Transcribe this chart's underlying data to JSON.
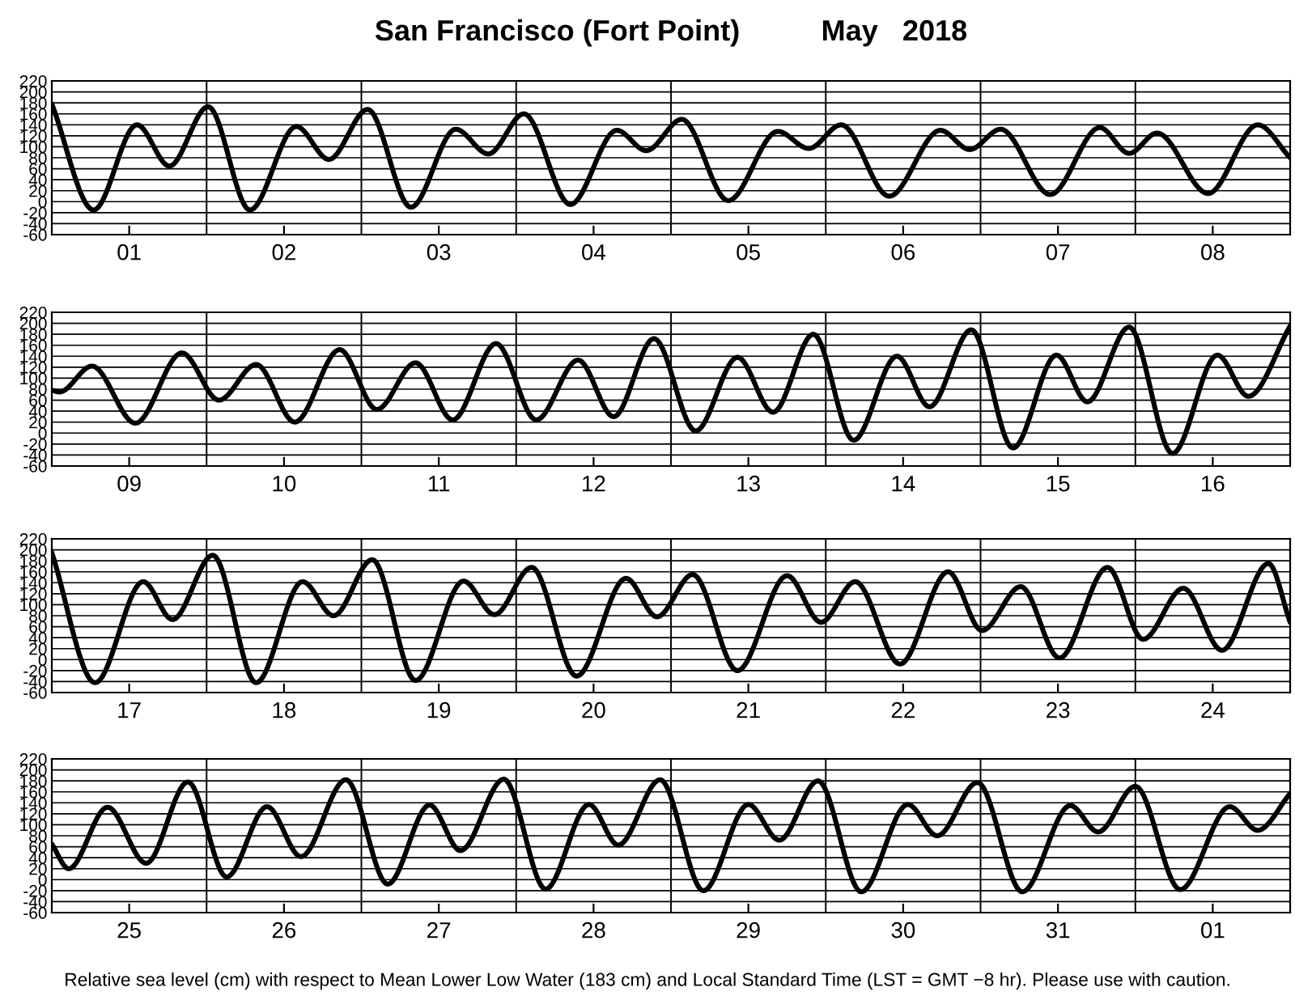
{
  "chart_data": [
    {
      "type": "line",
      "title": "San Francisco (Fort Point)          May   2018",
      "xlim": [
        "2018-05-01T00:00",
        "2018-05-09T00:00"
      ],
      "ylim": [
        -60,
        220
      ],
      "yticks": [
        -60,
        -40,
        -20,
        0,
        20,
        40,
        60,
        80,
        100,
        120,
        140,
        160,
        180,
        200,
        220
      ],
      "xticks": [
        {
          "value": "2018-05-01T12:00",
          "label": "01"
        },
        {
          "value": "2018-05-02T12:00",
          "label": "02"
        },
        {
          "value": "2018-05-03T12:00",
          "label": "03"
        },
        {
          "value": "2018-05-04T12:00",
          "label": "04"
        },
        {
          "value": "2018-05-05T12:00",
          "label": "05"
        },
        {
          "value": "2018-05-06T12:00",
          "label": "06"
        },
        {
          "value": "2018-05-07T12:00",
          "label": "07"
        },
        {
          "value": "2018-05-08T12:00",
          "label": "08"
        }
      ],
      "grid": "y",
      "ref_lines": [
        {
          "axis": "x",
          "value": "2018-05-02T00:00"
        },
        {
          "axis": "x",
          "value": "2018-05-03T00:00"
        },
        {
          "axis": "x",
          "value": "2018-05-04T00:00"
        },
        {
          "axis": "x",
          "value": "2018-05-05T00:00"
        },
        {
          "axis": "x",
          "value": "2018-05-06T00:00"
        },
        {
          "axis": "x",
          "value": "2018-05-07T00:00"
        },
        {
          "axis": "x",
          "value": "2018-05-08T00:00"
        }
      ],
      "series": [
        {
          "color": "#000000",
          "x": [
            "2018-05-01T00:00",
            "2018-05-01T06:29",
            "2018-05-01T13:12",
            "2018-05-01T18:14",
            "2018-05-02T00:14",
            "2018-05-02T06:43",
            "2018-05-02T13:55",
            "2018-05-02T18:58",
            "2018-05-03T00:58",
            "2018-05-03T07:41",
            "2018-05-03T14:38",
            "2018-05-03T19:41",
            "2018-05-04T01:12",
            "2018-05-04T08:24",
            "2018-05-04T15:36",
            "2018-05-04T20:10",
            "2018-05-05T01:41",
            "2018-05-05T08:53",
            "2018-05-05T16:34",
            "2018-05-05T21:22",
            "2018-05-06T02:24",
            "2018-05-06T09:50",
            "2018-05-06T17:46",
            "2018-05-06T22:19",
            "2018-05-07T03:07",
            "2018-05-07T10:48",
            "2018-05-07T18:29",
            "2018-05-07T23:02",
            "2018-05-08T03:22",
            "2018-05-08T11:17",
            "2018-05-08T18:58",
            "2018-05-09T00:00"
          ],
          "values": [
            178,
            -15,
            140,
            65,
            173,
            -15,
            137,
            77,
            168,
            -10,
            132,
            87,
            160,
            -5,
            130,
            93,
            150,
            2,
            128,
            97,
            140,
            10,
            130,
            95,
            132,
            13,
            135,
            88,
            125,
            15,
            140,
            80
          ]
        }
      ]
    },
    {
      "type": "line",
      "xlim": [
        "2018-05-09T00:00",
        "2018-05-17T00:00"
      ],
      "ylim": [
        -60,
        220
      ],
      "yticks": [
        -60,
        -40,
        -20,
        0,
        20,
        40,
        60,
        80,
        100,
        120,
        140,
        160,
        180,
        200,
        220
      ],
      "xticks": [
        {
          "value": "2018-05-09T12:00",
          "label": "09"
        },
        {
          "value": "2018-05-10T12:00",
          "label": "10"
        },
        {
          "value": "2018-05-11T12:00",
          "label": "11"
        },
        {
          "value": "2018-05-12T12:00",
          "label": "12"
        },
        {
          "value": "2018-05-13T12:00",
          "label": "13"
        },
        {
          "value": "2018-05-14T12:00",
          "label": "14"
        },
        {
          "value": "2018-05-15T12:00",
          "label": "15"
        },
        {
          "value": "2018-05-16T12:00",
          "label": "16"
        }
      ],
      "grid": "y",
      "ref_lines": [
        {
          "axis": "x",
          "value": "2018-05-10T00:00"
        },
        {
          "axis": "x",
          "value": "2018-05-11T00:00"
        },
        {
          "axis": "x",
          "value": "2018-05-12T00:00"
        },
        {
          "axis": "x",
          "value": "2018-05-13T00:00"
        },
        {
          "axis": "x",
          "value": "2018-05-14T00:00"
        },
        {
          "axis": "x",
          "value": "2018-05-15T00:00"
        },
        {
          "axis": "x",
          "value": "2018-05-16T00:00"
        }
      ],
      "series": [
        {
          "color": "#000000",
          "x": [
            "2018-05-09T00:00",
            "2018-05-09T01:12",
            "2018-05-09T06:14",
            "2018-05-09T12:58",
            "2018-05-09T20:10",
            "2018-05-10T01:55",
            "2018-05-10T07:41",
            "2018-05-10T13:41",
            "2018-05-10T20:38",
            "2018-05-11T02:24",
            "2018-05-11T08:24",
            "2018-05-11T14:10",
            "2018-05-11T20:53",
            "2018-05-12T03:07",
            "2018-05-12T09:36",
            "2018-05-12T15:07",
            "2018-05-12T21:22",
            "2018-05-13T03:50",
            "2018-05-13T10:19",
            "2018-05-13T15:50",
            "2018-05-13T22:05",
            "2018-05-14T04:19",
            "2018-05-14T11:02",
            "2018-05-14T16:05",
            "2018-05-14T22:34",
            "2018-05-15T05:02",
            "2018-05-15T11:46",
            "2018-05-15T16:34",
            "2018-05-15T23:02",
            "2018-05-16T05:46",
            "2018-05-16T12:43",
            "2018-05-16T17:31",
            "2018-05-17T00:00"
          ],
          "values": [
            78,
            75,
            122,
            18,
            146,
            60,
            125,
            20,
            152,
            43,
            128,
            24,
            163,
            24,
            133,
            30,
            172,
            4,
            138,
            38,
            180,
            -13,
            140,
            48,
            188,
            -27,
            142,
            57,
            193,
            -37,
            142,
            67,
            195
          ]
        }
      ]
    },
    {
      "type": "line",
      "xlim": [
        "2018-05-17T00:00",
        "2018-05-25T00:00"
      ],
      "ylim": [
        -60,
        220
      ],
      "yticks": [
        -60,
        -40,
        -20,
        0,
        20,
        40,
        60,
        80,
        100,
        120,
        140,
        160,
        180,
        200,
        220
      ],
      "xticks": [
        {
          "value": "2018-05-17T12:00",
          "label": "17"
        },
        {
          "value": "2018-05-18T12:00",
          "label": "18"
        },
        {
          "value": "2018-05-19T12:00",
          "label": "19"
        },
        {
          "value": "2018-05-20T12:00",
          "label": "20"
        },
        {
          "value": "2018-05-21T12:00",
          "label": "21"
        },
        {
          "value": "2018-05-22T12:00",
          "label": "22"
        },
        {
          "value": "2018-05-23T12:00",
          "label": "23"
        },
        {
          "value": "2018-05-24T12:00",
          "label": "24"
        }
      ],
      "grid": "y",
      "ref_lines": [
        {
          "axis": "x",
          "value": "2018-05-18T00:00"
        },
        {
          "axis": "x",
          "value": "2018-05-19T00:00"
        },
        {
          "axis": "x",
          "value": "2018-05-20T00:00"
        },
        {
          "axis": "x",
          "value": "2018-05-21T00:00"
        },
        {
          "axis": "x",
          "value": "2018-05-22T00:00"
        },
        {
          "axis": "x",
          "value": "2018-05-23T00:00"
        },
        {
          "axis": "x",
          "value": "2018-05-24T00:00"
        }
      ],
      "series": [
        {
          "color": "#000000",
          "x": [
            "2018-05-17T00:00",
            "2018-05-17T06:43",
            "2018-05-17T14:10",
            "2018-05-17T18:43",
            "2018-05-18T00:58",
            "2018-05-18T07:41",
            "2018-05-18T14:53",
            "2018-05-18T19:41",
            "2018-05-19T01:41",
            "2018-05-19T08:24",
            "2018-05-19T15:50",
            "2018-05-19T20:38",
            "2018-05-20T02:24",
            "2018-05-20T09:22",
            "2018-05-20T17:02",
            "2018-05-20T21:50",
            "2018-05-21T03:22",
            "2018-05-21T10:19",
            "2018-05-21T18:00",
            "2018-05-21T23:17",
            "2018-05-22T04:34",
            "2018-05-22T11:31",
            "2018-05-22T18:58",
            "2018-05-23T00:14",
            "2018-05-23T06:14",
            "2018-05-23T12:14",
            "2018-05-23T19:41",
            "2018-05-24T01:12",
            "2018-05-24T07:26",
            "2018-05-24T13:26",
            "2018-05-24T20:38",
            "2018-05-25T00:00"
          ],
          "values": [
            195,
            -42,
            142,
            73,
            190,
            -42,
            142,
            80,
            182,
            -38,
            143,
            82,
            168,
            -30,
            148,
            78,
            155,
            -20,
            153,
            68,
            142,
            -8,
            160,
            53,
            133,
            3,
            168,
            37,
            130,
            17,
            175,
            68
          ]
        }
      ]
    },
    {
      "type": "line",
      "xlim": [
        "2018-05-25T00:00",
        "2018-06-02T00:00"
      ],
      "ylim": [
        -60,
        220
      ],
      "yticks": [
        -60,
        -40,
        -20,
        0,
        20,
        40,
        60,
        80,
        100,
        120,
        140,
        160,
        180,
        200,
        220
      ],
      "xticks": [
        {
          "value": "2018-05-25T12:00",
          "label": "25"
        },
        {
          "value": "2018-05-26T12:00",
          "label": "26"
        },
        {
          "value": "2018-05-27T12:00",
          "label": "27"
        },
        {
          "value": "2018-05-28T12:00",
          "label": "28"
        },
        {
          "value": "2018-05-29T12:00",
          "label": "29"
        },
        {
          "value": "2018-05-30T12:00",
          "label": "30"
        },
        {
          "value": "2018-05-31T12:00",
          "label": "31"
        },
        {
          "value": "2018-06-01T12:00",
          "label": "01"
        }
      ],
      "grid": "y",
      "ref_lines": [
        {
          "axis": "x",
          "value": "2018-05-26T00:00"
        },
        {
          "axis": "x",
          "value": "2018-05-27T00:00"
        },
        {
          "axis": "x",
          "value": "2018-05-28T00:00"
        },
        {
          "axis": "x",
          "value": "2018-05-29T00:00"
        },
        {
          "axis": "x",
          "value": "2018-05-30T00:00"
        },
        {
          "axis": "x",
          "value": "2018-05-31T00:00"
        },
        {
          "axis": "x",
          "value": "2018-06-01T00:00"
        }
      ],
      "annotations": [
        "Relative sea level (cm) with respect to Mean Lower Low Water (183 cm) and Local Standard Time (LST = GMT −8 hr). Please use with caution."
      ],
      "series": [
        {
          "color": "#000000",
          "x": [
            "2018-05-25T00:00",
            "2018-05-25T02:38",
            "2018-05-25T08:38",
            "2018-05-25T14:38",
            "2018-05-25T21:07",
            "2018-05-26T03:07",
            "2018-05-26T09:22",
            "2018-05-26T14:38",
            "2018-05-26T21:36",
            "2018-05-27T04:05",
            "2018-05-27T10:34",
            "2018-05-27T15:22",
            "2018-05-27T22:05",
            "2018-05-28T04:34",
            "2018-05-28T11:17",
            "2018-05-28T15:50",
            "2018-05-28T22:19",
            "2018-05-29T05:02",
            "2018-05-29T12:00",
            "2018-05-29T16:48",
            "2018-05-29T22:48",
            "2018-05-30T05:31",
            "2018-05-30T12:43",
            "2018-05-30T17:17",
            "2018-05-30T23:31",
            "2018-05-31T06:29",
            "2018-05-31T13:55",
            "2018-05-31T18:14",
            "2018-06-01T00:00",
            "2018-06-01T06:58",
            "2018-06-01T14:38",
            "2018-06-01T18:58",
            "2018-06-02T00:00"
          ],
          "values": [
            65,
            20,
            132,
            30,
            178,
            5,
            133,
            42,
            182,
            -8,
            136,
            53,
            183,
            -17,
            137,
            63,
            182,
            -20,
            137,
            72,
            180,
            -22,
            137,
            80,
            177,
            -22,
            135,
            87,
            170,
            -18,
            133,
            90,
            157
          ]
        }
      ]
    }
  ]
}
